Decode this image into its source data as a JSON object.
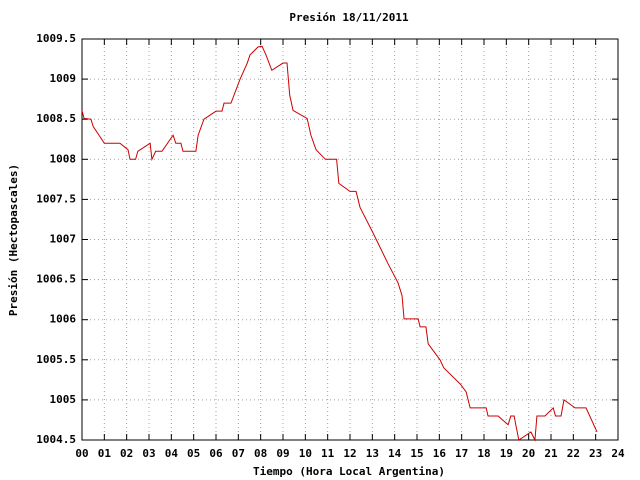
{
  "chart_data": {
    "type": "line",
    "title": "Presión 18/11/2011",
    "x_label": "Tiempo (Hora Local Argentina)",
    "y_label": "Presión (Hectopascales)",
    "color": "#cc0000",
    "grid": true,
    "xlim": [
      0,
      24
    ],
    "xticks": [
      {
        "value": 0,
        "label": "00"
      },
      {
        "value": 1,
        "label": "01"
      },
      {
        "value": 2,
        "label": "02"
      },
      {
        "value": 3,
        "label": "03"
      },
      {
        "value": 4,
        "label": "04"
      },
      {
        "value": 5,
        "label": "05"
      },
      {
        "value": 6,
        "label": "06"
      },
      {
        "value": 7,
        "label": "07"
      },
      {
        "value": 8,
        "label": "08"
      },
      {
        "value": 9,
        "label": "09"
      },
      10,
      11,
      12,
      13,
      14,
      15,
      16,
      17,
      18,
      19,
      20,
      21,
      22,
      23,
      24
    ],
    "ylim": [
      1004.5,
      1009.5
    ],
    "yticks": [
      1004.5,
      1005,
      1005.5,
      1006,
      1006.5,
      1007,
      1007.5,
      1008,
      1008.5,
      1009,
      1009.5
    ],
    "x": [
      0,
      0.09,
      0.4,
      0.5,
      1.0,
      1.7,
      2.06,
      2.15,
      2.4,
      2.5,
      3.05,
      3.13,
      3.3,
      3.58,
      4.08,
      4.2,
      4.43,
      4.52,
      5.1,
      5.2,
      5.46,
      6.0,
      6.27,
      6.36,
      6.67,
      7.08,
      7.4,
      7.52,
      7.88,
      8.06,
      8.24,
      8.5,
      9.0,
      9.18,
      9.3,
      9.45,
      10.08,
      10.25,
      10.48,
      10.9,
      11.4,
      11.5,
      12.0,
      12.27,
      12.45,
      13.0,
      13.7,
      14.15,
      14.33,
      14.42,
      15.05,
      15.14,
      15.4,
      15.5,
      16.03,
      16.2,
      16.93,
      17.2,
      17.38,
      18.1,
      18.18,
      18.63,
      19.08,
      19.2,
      19.35,
      19.43,
      19.56,
      20.1,
      20.28,
      20.37,
      20.73,
      21.1,
      21.2,
      21.45,
      21.58,
      22.08,
      22.57,
      23.06
    ],
    "values": [
      1008.61,
      1008.51,
      1008.5,
      1008.41,
      1008.2,
      1008.2,
      1008.12,
      1008.0,
      1008.0,
      1008.1,
      1008.2,
      1008.0,
      1008.1,
      1008.1,
      1008.3,
      1008.2,
      1008.2,
      1008.1,
      1008.1,
      1008.3,
      1008.5,
      1008.6,
      1008.6,
      1008.7,
      1008.7,
      1009.0,
      1009.2,
      1009.3,
      1009.4,
      1009.41,
      1009.3,
      1009.11,
      1009.2,
      1009.2,
      1008.8,
      1008.61,
      1008.51,
      1008.3,
      1008.12,
      1008.0,
      1008.0,
      1007.7,
      1007.6,
      1007.6,
      1007.4,
      1007.1,
      1006.7,
      1006.46,
      1006.3,
      1006.01,
      1006.01,
      1005.91,
      1005.91,
      1005.7,
      1005.5,
      1005.4,
      1005.2,
      1005.1,
      1004.9,
      1004.9,
      1004.8,
      1004.8,
      1004.69,
      1004.8,
      1004.8,
      1004.68,
      1004.5,
      1004.6,
      1004.5,
      1004.8,
      1004.8,
      1004.9,
      1004.8,
      1004.8,
      1005.0,
      1004.9,
      1004.9,
      1004.6
    ]
  }
}
